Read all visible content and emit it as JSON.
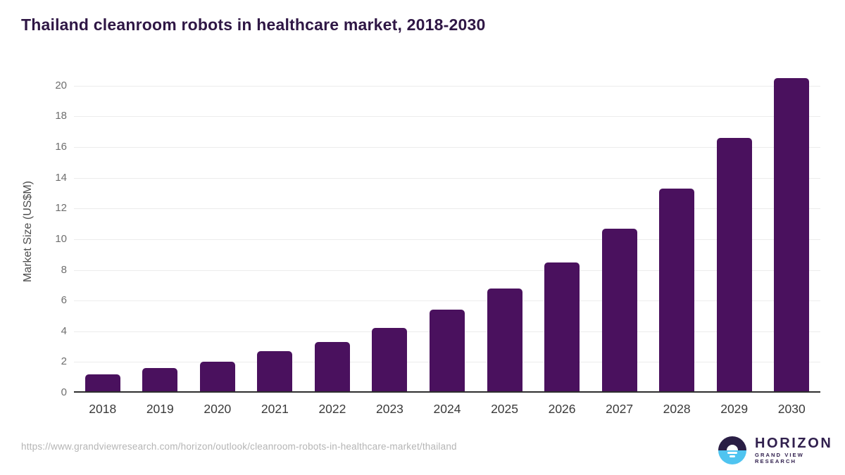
{
  "title": "Thailand cleanroom robots in healthcare market, 2018-2030",
  "chart_data": {
    "type": "bar",
    "title": "Thailand cleanroom robots in healthcare market, 2018-2030",
    "categories": [
      "2018",
      "2019",
      "2020",
      "2021",
      "2022",
      "2023",
      "2024",
      "2025",
      "2026",
      "2027",
      "2028",
      "2029",
      "2030"
    ],
    "values": [
      1.2,
      1.6,
      2.0,
      2.7,
      3.3,
      4.2,
      5.4,
      6.8,
      8.5,
      10.7,
      13.3,
      16.6,
      20.5
    ],
    "xlabel": "",
    "ylabel": "Market Size (US$M)",
    "ylim": [
      0,
      21
    ],
    "yticks": [
      0,
      2,
      4,
      6,
      8,
      10,
      12,
      14,
      16,
      18,
      20
    ],
    "grid": true,
    "legend": "none",
    "bar_color": "#4a115e"
  },
  "colors": {
    "title_text": "#2f1745",
    "bar": "#4a115e",
    "gridline": "#ececec",
    "axis_line": "#2e2e2e",
    "ytick_text": "#6e6e6e",
    "xtick_text": "#3a3a3a",
    "url_text": "#b5b5b5",
    "logo_dark": "#2a1e45",
    "logo_blue": "#4fc4f0",
    "logo_text": "#31204e"
  },
  "footer": {
    "source_url": "https://www.grandviewresearch.com/horizon/outlook/cleanroom-robots-in-healthcare-market/thailand",
    "logo": {
      "name": "HORIZON",
      "subtitle": "GRAND VIEW RESEARCH"
    }
  }
}
